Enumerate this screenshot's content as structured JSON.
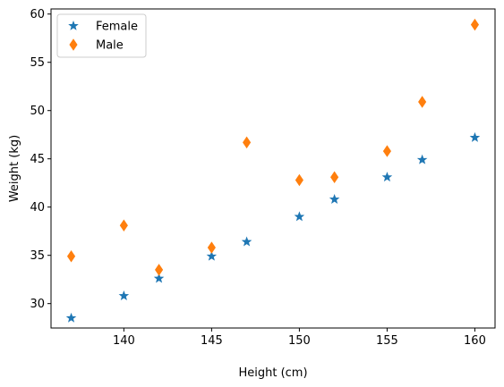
{
  "chart_data": {
    "type": "scatter",
    "xlabel": "Height (cm)",
    "ylabel": "Weight (kg)",
    "xlim": [
      135.85,
      161.15
    ],
    "ylim": [
      27.47,
      60.53
    ],
    "xticks": [
      140,
      145,
      150,
      155,
      160
    ],
    "yticks": [
      30,
      35,
      40,
      45,
      50,
      55,
      60
    ],
    "grid": false,
    "legend_position": "top-left",
    "series": [
      {
        "name": "Female",
        "marker": "star",
        "color": "#1f77b4",
        "x": [
          137,
          140,
          142,
          145,
          147,
          150,
          152,
          155,
          157,
          160
        ],
        "y": [
          28.5,
          30.8,
          32.6,
          34.9,
          36.4,
          39.0,
          40.8,
          43.1,
          44.9,
          47.2
        ]
      },
      {
        "name": "Male",
        "marker": "thin_diamond",
        "color": "#ff7f0e",
        "x": [
          137,
          140,
          142,
          145,
          147,
          150,
          152,
          155,
          157,
          160
        ],
        "y": [
          34.9,
          38.1,
          33.5,
          35.8,
          46.7,
          42.8,
          43.1,
          45.8,
          50.9,
          58.9
        ]
      }
    ]
  }
}
